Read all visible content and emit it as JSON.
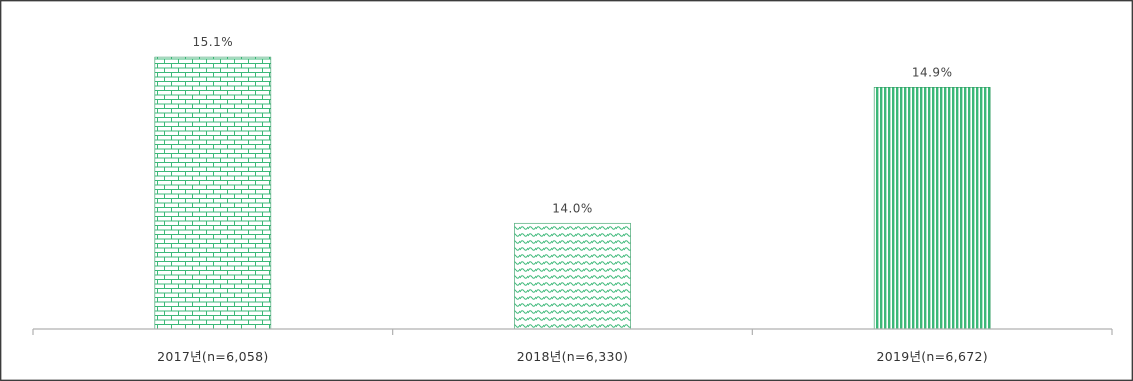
{
  "chart_data": {
    "type": "bar",
    "categories": [
      "2017년(n=6,058)",
      "2018년(n=6,330)",
      "2019년(n=6,672)"
    ],
    "values": [
      15.1,
      14.0,
      14.9
    ],
    "data_labels": [
      "15.1%",
      "14.0%",
      "14.9%"
    ],
    "patterns": [
      "brick",
      "wave",
      "vertical-stripes"
    ],
    "ylim": [
      13.3,
      15.2
    ],
    "grid": false,
    "legend": "none",
    "bar_color": "#3cb878",
    "bar_stroke": "#2a9a5e"
  }
}
